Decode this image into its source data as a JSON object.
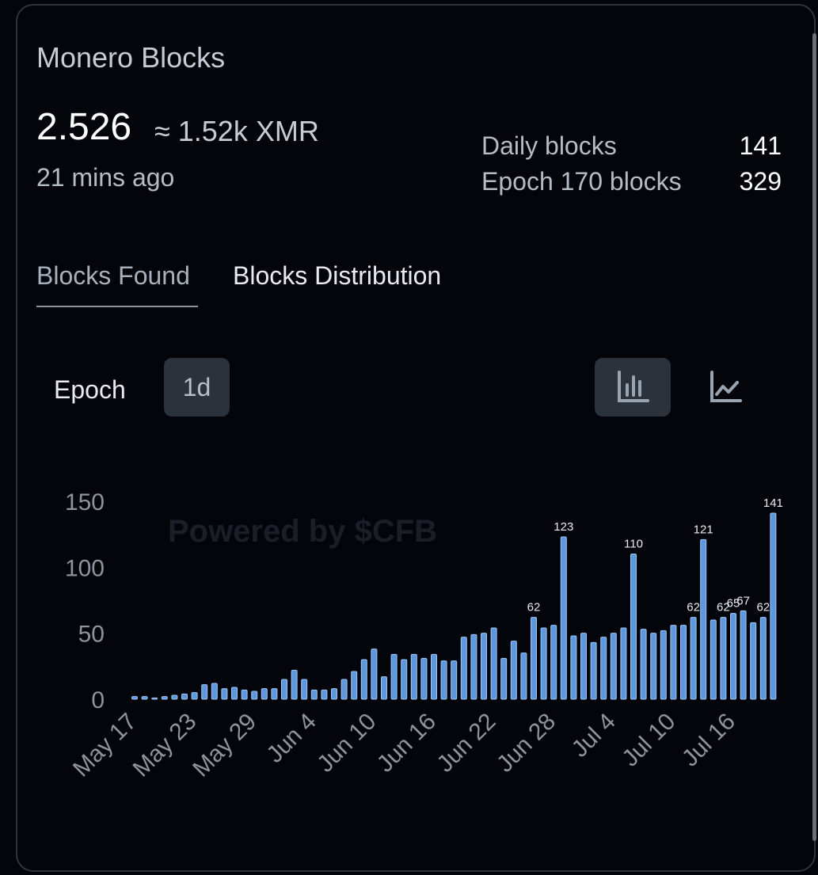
{
  "header": {
    "title": "Monero Blocks",
    "value": "2.526",
    "approx": "≈ 1.52k XMR",
    "time_ago": "21 mins ago"
  },
  "stats": {
    "daily_label": "Daily blocks",
    "daily_value": "141",
    "epoch_label": "Epoch 170 blocks",
    "epoch_value": "329"
  },
  "tabs": {
    "found": "Blocks Found",
    "distribution": "Blocks Distribution"
  },
  "controls": {
    "epoch_label": "Epoch",
    "interval": "1d",
    "bar_icon": "bar-chart-icon",
    "line_icon": "line-chart-icon"
  },
  "colors": {
    "bar": "#5f97dd",
    "bar_edge": "#9cc6f5",
    "accent_bg": "#2c323c"
  },
  "chart_data": {
    "type": "bar",
    "title": "",
    "xlabel": "",
    "ylabel": "",
    "ylim": [
      0,
      150
    ],
    "yticks": [
      0,
      50,
      100,
      150
    ],
    "watermark": "Powered by $CFB",
    "x_tick_labels": [
      "May 17",
      "May 23",
      "May 29",
      "Jun 4",
      "Jun 10",
      "Jun 16",
      "Jun 22",
      "Jun 28",
      "Jul 4",
      "Jul 10",
      "Jul 16"
    ],
    "x_tick_every": 6,
    "values": [
      2,
      2,
      1,
      2,
      3,
      4,
      5,
      11,
      12,
      8,
      9,
      7,
      6,
      8,
      8,
      15,
      22,
      15,
      7,
      7,
      8,
      15,
      21,
      30,
      38,
      17,
      34,
      30,
      34,
      31,
      34,
      29,
      29,
      47,
      49,
      50,
      54,
      31,
      44,
      35,
      62,
      54,
      56,
      123,
      48,
      50,
      43,
      47,
      50,
      54,
      110,
      53,
      50,
      52,
      56,
      56,
      62,
      121,
      60,
      62,
      65,
      67,
      58,
      62,
      141
    ],
    "data_labels": [
      {
        "index": 40,
        "text": "62"
      },
      {
        "index": 43,
        "text": "123"
      },
      {
        "index": 50,
        "text": "110"
      },
      {
        "index": 56,
        "text": "62"
      },
      {
        "index": 57,
        "text": "121"
      },
      {
        "index": 59,
        "text": "62"
      },
      {
        "index": 60,
        "text": "65"
      },
      {
        "index": 61,
        "text": "67"
      },
      {
        "index": 63,
        "text": "62"
      },
      {
        "index": 64,
        "text": "141"
      }
    ]
  }
}
